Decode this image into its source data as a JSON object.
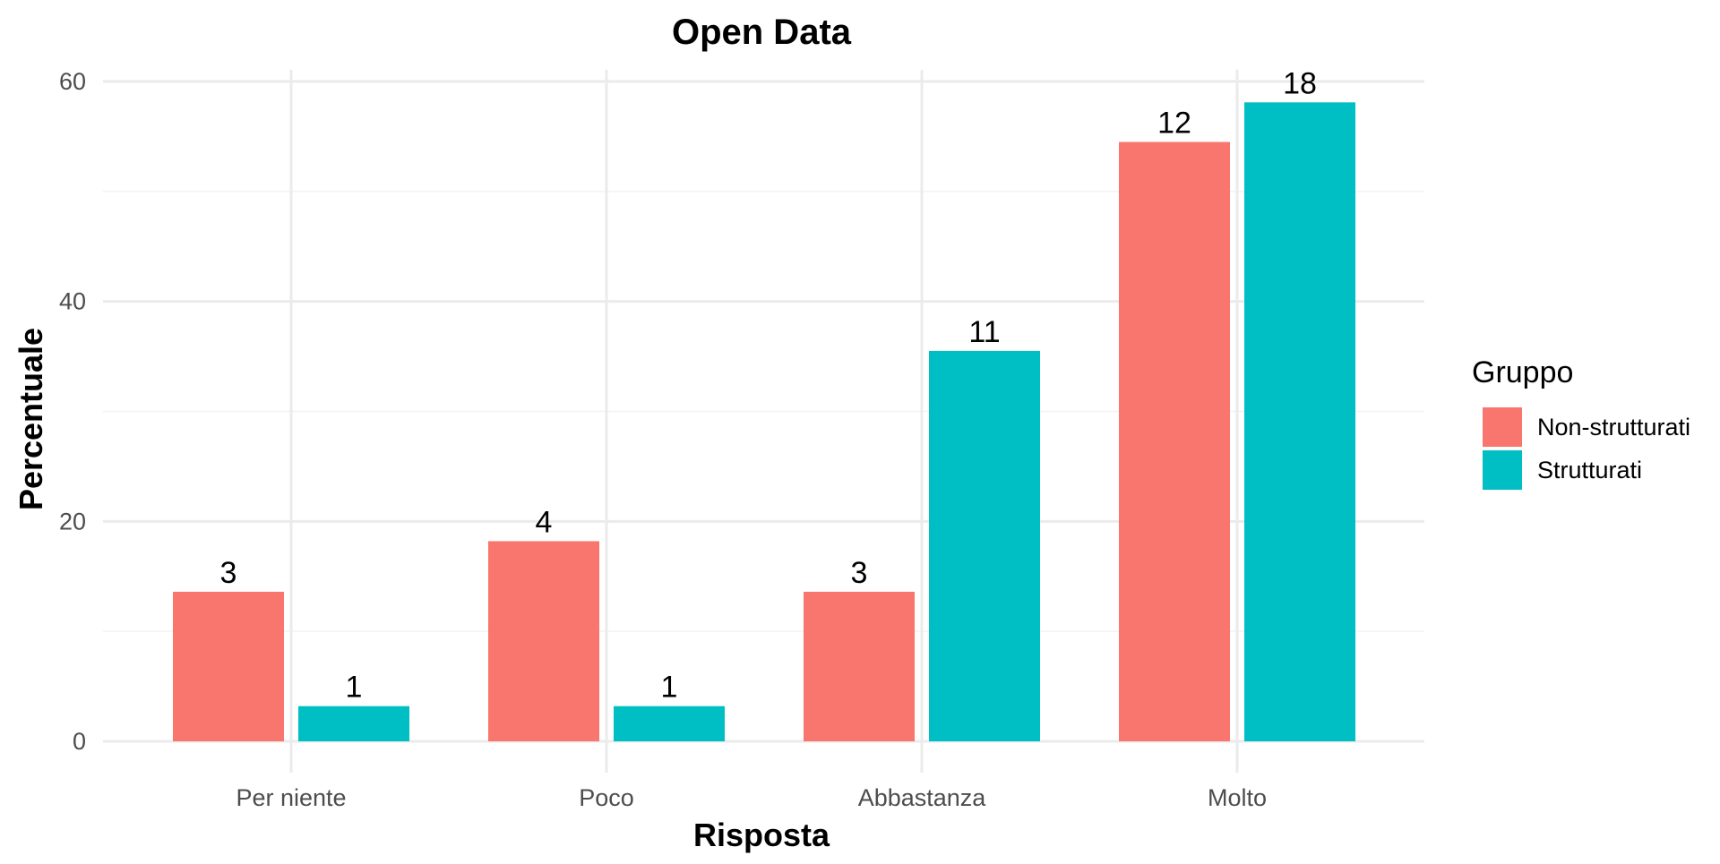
{
  "chart_data": {
    "type": "bar",
    "title": "Open Data",
    "xlabel": "Risposta",
    "ylabel": "Percentuale",
    "categories": [
      "Per niente",
      "Poco",
      "Abbastanza",
      "Molto"
    ],
    "series": [
      {
        "name": "Non-strutturati",
        "color": "#F8766D",
        "values": [
          13.6,
          18.2,
          13.6,
          54.5
        ],
        "labels": [
          "3",
          "4",
          "3",
          "12"
        ]
      },
      {
        "name": "Strutturati",
        "color": "#00BFC4",
        "values": [
          3.2,
          3.2,
          35.5,
          58.1
        ],
        "labels": [
          "1",
          "1",
          "11",
          "18"
        ]
      }
    ],
    "ylim": [
      0,
      60
    ],
    "yticks": [
      0,
      20,
      40,
      60
    ],
    "grid": true,
    "legend": {
      "title": "Gruppo",
      "position": "right"
    }
  }
}
